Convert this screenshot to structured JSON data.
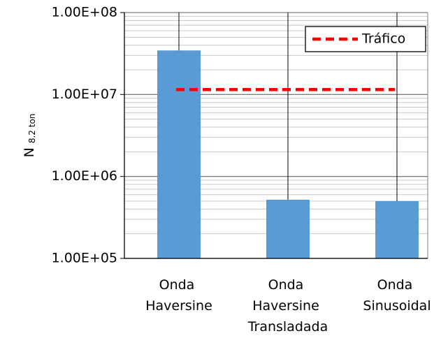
{
  "chart_data": {
    "type": "bar",
    "y_label": "N",
    "y_label_sub": "8.2 ton",
    "categories": [
      "Onda Haversine",
      "Onda Haversine Transladada",
      "Onda Sinusoidal"
    ],
    "values": [
      34500000,
      520000,
      500000
    ],
    "color": "#5b9bd5",
    "reference_line": {
      "name": "Tráfico",
      "value": 11500000,
      "color": "#ff0000",
      "dashed": true
    },
    "legend": "upper right",
    "log_y": true,
    "ylim": [
      100000,
      100000000
    ],
    "yticks": [
      {
        "value": 100000,
        "label": "1.00E+05"
      },
      {
        "value": 1000000,
        "label": "1.00E+06"
      },
      {
        "value": 10000000,
        "label": "1.00E+07"
      },
      {
        "value": 100000000,
        "label": "1.00E+08"
      }
    ],
    "minor_yticks": [
      200000,
      300000,
      400000,
      500000,
      600000,
      700000,
      800000,
      900000,
      2000000,
      3000000,
      4000000,
      5000000,
      6000000,
      7000000,
      8000000,
      9000000,
      20000000,
      30000000,
      40000000,
      50000000,
      60000000,
      70000000,
      80000000,
      90000000
    ],
    "grid": true
  }
}
